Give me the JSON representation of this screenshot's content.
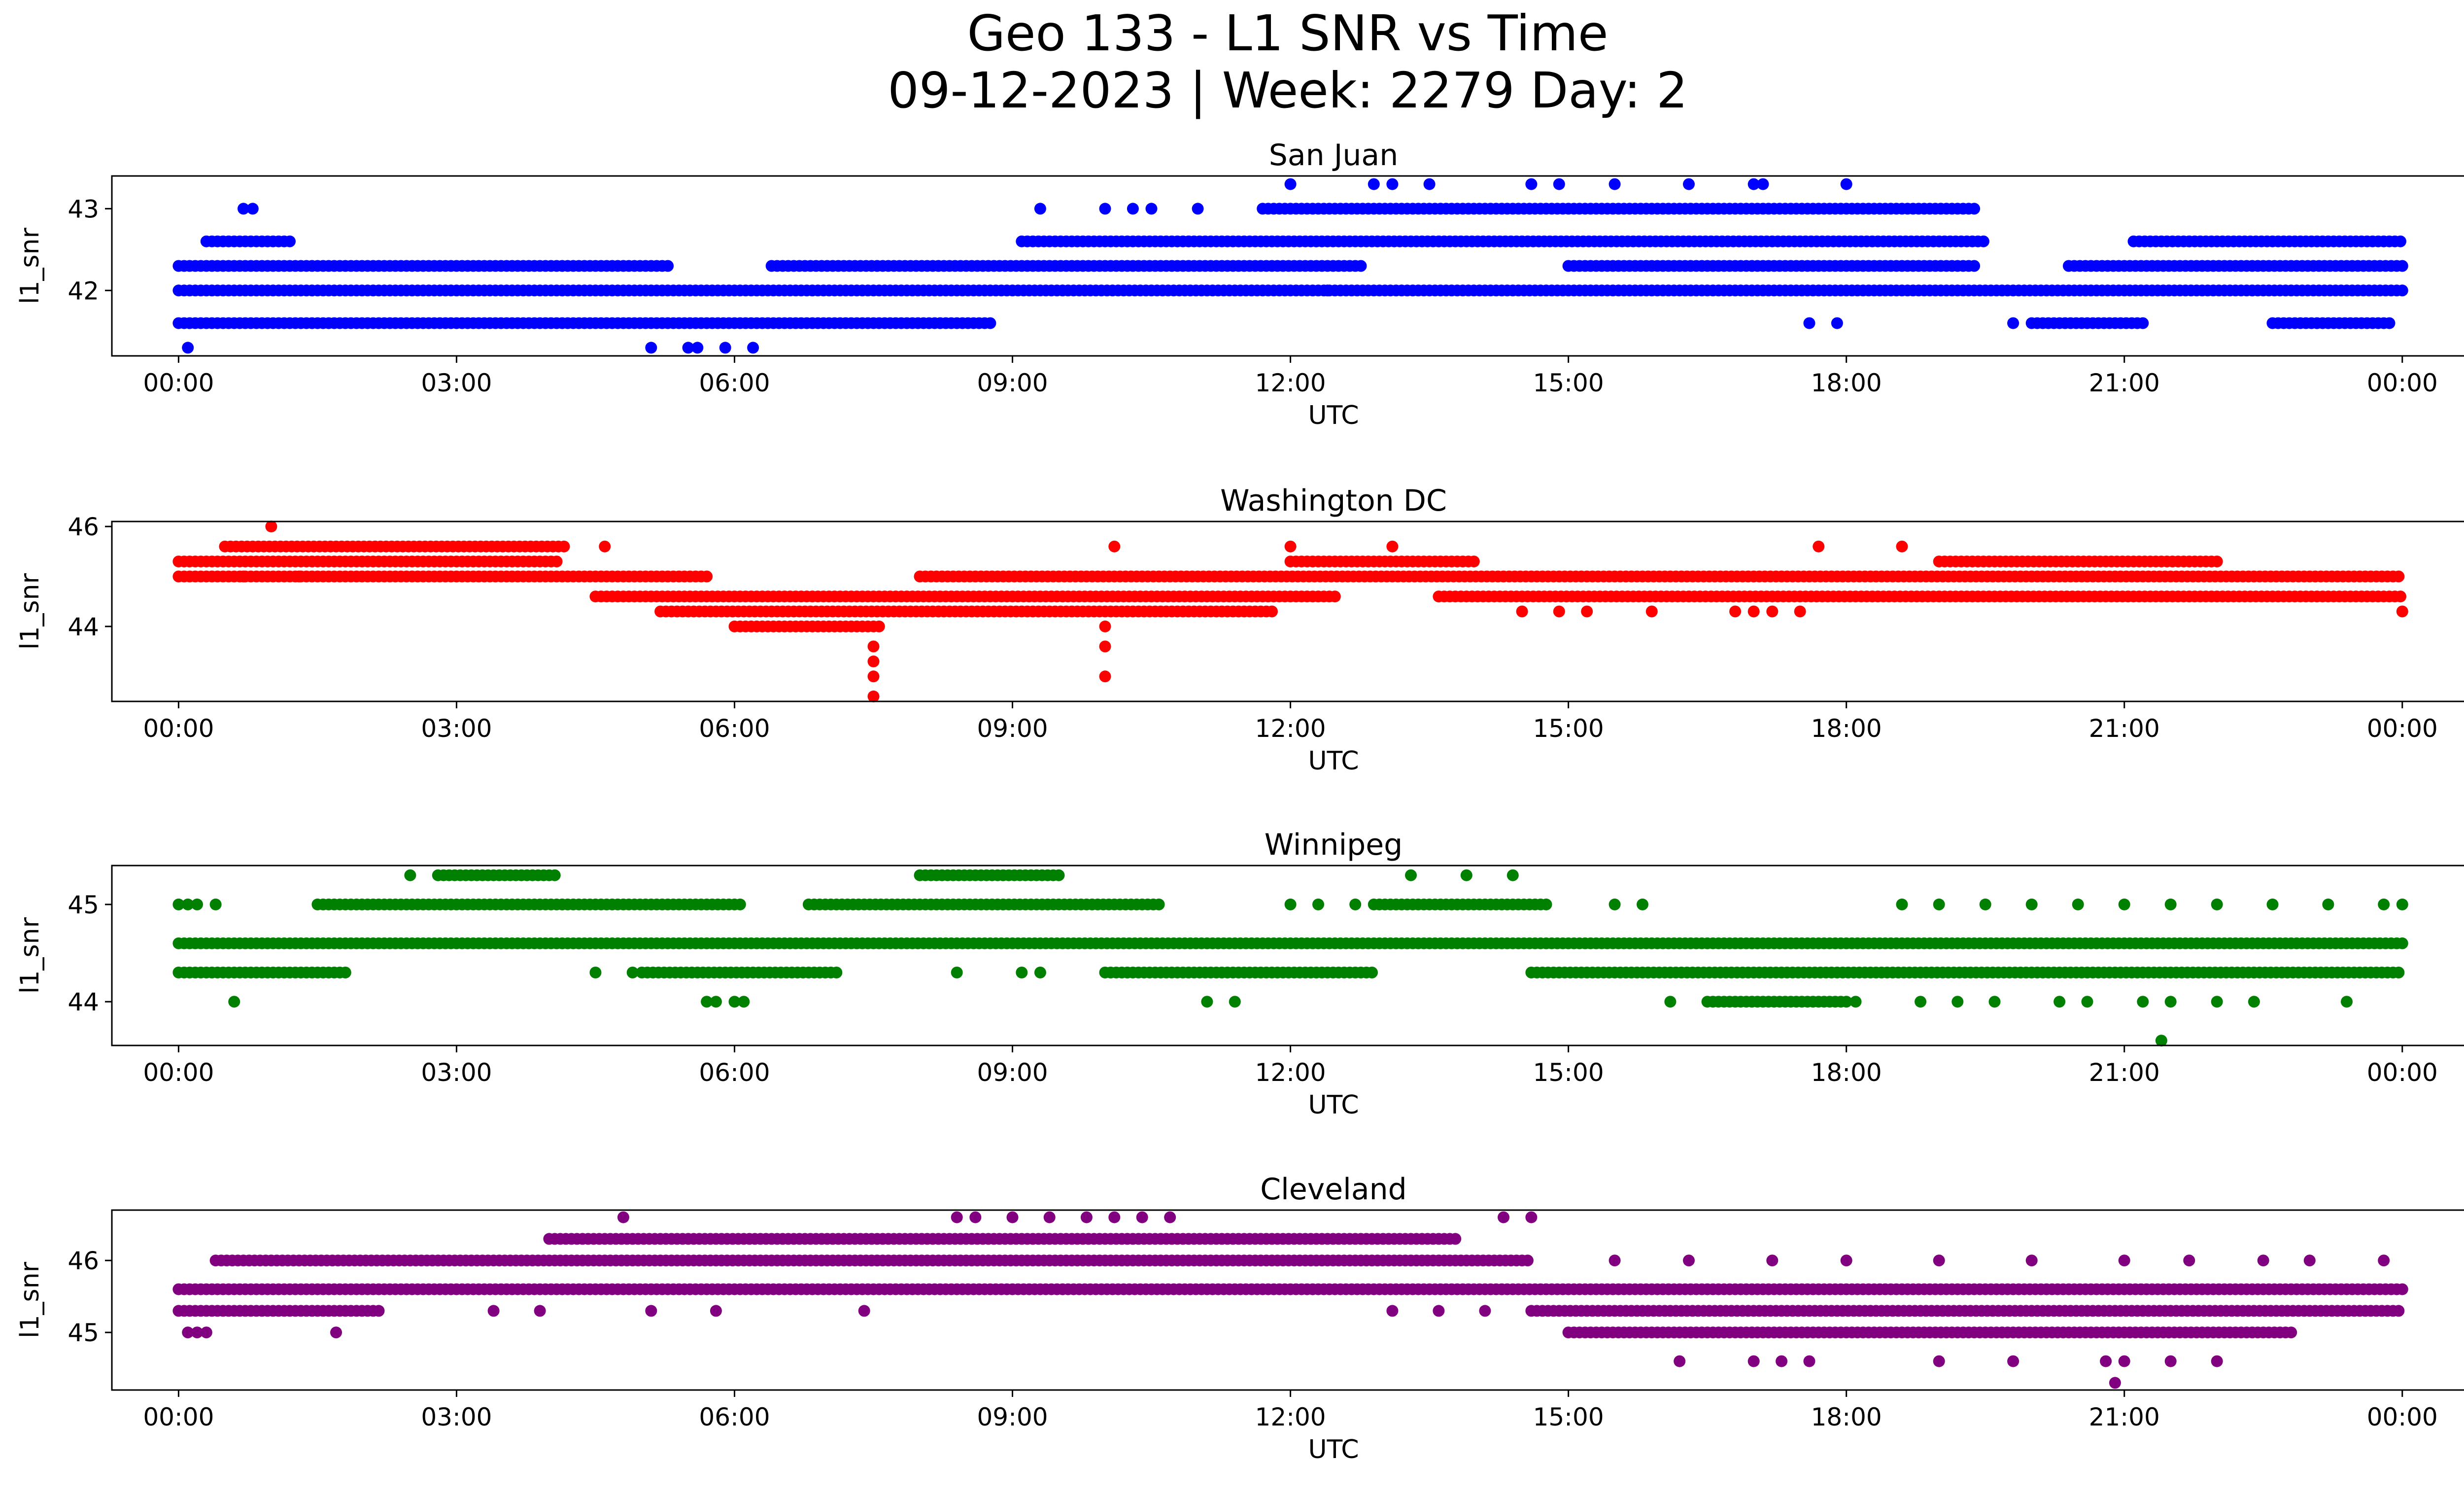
{
  "figure": {
    "title_line1": "Geo 133 - L1 SNR vs Time",
    "title_line2": "09-12-2023 | Week: 2279 Day: 2"
  },
  "chart_data": [
    {
      "type": "scatter",
      "title": "San Juan",
      "xlabel": "UTC",
      "ylabel": "l1_snr",
      "color": "#0000ff",
      "x_unit": "hours UTC",
      "x_range_hours": [
        -0.72,
        25.65
      ],
      "x_ticks": [
        "00:00",
        "03:00",
        "06:00",
        "09:00",
        "12:00",
        "15:00",
        "18:00",
        "21:00",
        "00:00"
      ],
      "ylim": [
        41.2,
        43.4
      ],
      "y_ticks": [
        42,
        43
      ],
      "snr_levels": [
        41.3,
        41.6,
        42.0,
        42.3,
        42.6,
        43.0,
        43.3
      ],
      "bands": [
        {
          "y": 42.0,
          "x": [
            [
              0.0,
              24.0
            ]
          ]
        },
        {
          "y": 42.3,
          "x": [
            [
              0.0,
              5.3
            ],
            [
              6.4,
              12.8
            ],
            [
              15.0,
              19.4
            ],
            [
              20.4,
              24.0
            ]
          ]
        },
        {
          "y": 41.6,
          "x": [
            [
              0.0,
              8.8
            ],
            [
              20.0,
              21.2
            ],
            [
              22.6,
              23.9
            ]
          ]
        },
        {
          "y": 42.6,
          "x": [
            [
              0.3,
              1.2
            ],
            [
              9.1,
              19.5
            ],
            [
              21.1,
              24.0
            ]
          ]
        },
        {
          "y": 43.0,
          "x": [
            [
              11.7,
              19.4
            ]
          ]
        }
      ],
      "points": [
        {
          "x": 0.7,
          "y": 43.0
        },
        {
          "x": 0.8,
          "y": 43.0
        },
        {
          "x": 0.1,
          "y": 41.3
        },
        {
          "x": 5.1,
          "y": 41.3
        },
        {
          "x": 5.5,
          "y": 41.3
        },
        {
          "x": 5.6,
          "y": 41.3
        },
        {
          "x": 5.9,
          "y": 41.3
        },
        {
          "x": 6.2,
          "y": 41.3
        },
        {
          "x": 9.3,
          "y": 43.0
        },
        {
          "x": 10.0,
          "y": 43.0
        },
        {
          "x": 10.3,
          "y": 43.0
        },
        {
          "x": 10.5,
          "y": 43.0
        },
        {
          "x": 11.0,
          "y": 43.0
        },
        {
          "x": 12.0,
          "y": 43.3
        },
        {
          "x": 12.9,
          "y": 43.3
        },
        {
          "x": 13.1,
          "y": 43.3
        },
        {
          "x": 13.5,
          "y": 43.3
        },
        {
          "x": 14.6,
          "y": 43.3
        },
        {
          "x": 14.9,
          "y": 43.3
        },
        {
          "x": 15.5,
          "y": 43.3
        },
        {
          "x": 16.3,
          "y": 43.3
        },
        {
          "x": 17.0,
          "y": 43.3
        },
        {
          "x": 17.1,
          "y": 43.3
        },
        {
          "x": 18.0,
          "y": 43.3
        },
        {
          "x": 12.4,
          "y": 42.0
        },
        {
          "x": 17.6,
          "y": 41.6
        },
        {
          "x": 17.9,
          "y": 41.6
        },
        {
          "x": 19.8,
          "y": 41.6
        }
      ]
    },
    {
      "type": "scatter",
      "title": "Washington DC",
      "xlabel": "UTC",
      "ylabel": "l1_snr",
      "color": "#ff0000",
      "x_unit": "hours UTC",
      "x_range_hours": [
        -0.72,
        25.65
      ],
      "x_ticks": [
        "00:00",
        "03:00",
        "06:00",
        "09:00",
        "12:00",
        "15:00",
        "18:00",
        "21:00",
        "00:00"
      ],
      "ylim": [
        42.5,
        46.1
      ],
      "y_ticks": [
        44,
        46
      ],
      "snr_levels": [
        42.6,
        43.0,
        43.3,
        43.6,
        44.0,
        44.3,
        44.6,
        45.0,
        45.3,
        45.6,
        46.0
      ],
      "bands": [
        {
          "y": 45.0,
          "x": [
            [
              0.0,
              5.7
            ],
            [
              8.0,
              24.0
            ]
          ]
        },
        {
          "y": 45.3,
          "x": [
            [
              0.0,
              4.1
            ],
            [
              12.0,
              14.0
            ],
            [
              19.0,
              22.0
            ]
          ]
        },
        {
          "y": 45.6,
          "x": [
            [
              0.5,
              4.2
            ]
          ]
        },
        {
          "y": 44.6,
          "x": [
            [
              4.5,
              12.5
            ],
            [
              13.6,
              24.0
            ]
          ]
        },
        {
          "y": 44.3,
          "x": [
            [
              5.2,
              11.8
            ]
          ]
        },
        {
          "y": 44.0,
          "x": [
            [
              6.0,
              7.6
            ]
          ]
        }
      ],
      "points": [
        {
          "x": 1.0,
          "y": 46.0
        },
        {
          "x": 7.5,
          "y": 43.6
        },
        {
          "x": 7.5,
          "y": 43.3
        },
        {
          "x": 7.5,
          "y": 43.0
        },
        {
          "x": 7.5,
          "y": 42.6
        },
        {
          "x": 10.0,
          "y": 44.0
        },
        {
          "x": 10.0,
          "y": 43.6
        },
        {
          "x": 10.0,
          "y": 43.0
        },
        {
          "x": 10.1,
          "y": 45.6
        },
        {
          "x": 12.0,
          "y": 45.6
        },
        {
          "x": 13.1,
          "y": 45.6
        },
        {
          "x": 17.7,
          "y": 45.6
        },
        {
          "x": 18.6,
          "y": 45.6
        },
        {
          "x": 14.5,
          "y": 44.3
        },
        {
          "x": 14.9,
          "y": 44.3
        },
        {
          "x": 15.2,
          "y": 44.3
        },
        {
          "x": 15.9,
          "y": 44.3
        },
        {
          "x": 16.8,
          "y": 44.3
        },
        {
          "x": 17.0,
          "y": 44.3
        },
        {
          "x": 17.2,
          "y": 44.3
        },
        {
          "x": 17.5,
          "y": 44.3
        },
        {
          "x": 24.0,
          "y": 44.3
        },
        {
          "x": 0.7,
          "y": 45.0
        },
        {
          "x": 1.3,
          "y": 45.0
        },
        {
          "x": 4.6,
          "y": 45.6
        }
      ]
    },
    {
      "type": "scatter",
      "title": "Winnipeg",
      "xlabel": "UTC",
      "ylabel": "l1_snr",
      "color": "#008000",
      "x_unit": "hours UTC",
      "x_range_hours": [
        -0.72,
        25.65
      ],
      "x_ticks": [
        "00:00",
        "03:00",
        "06:00",
        "09:00",
        "12:00",
        "15:00",
        "18:00",
        "21:00",
        "00:00"
      ],
      "ylim": [
        43.55,
        45.4
      ],
      "y_ticks": [
        44,
        45
      ],
      "snr_levels": [
        43.6,
        44.0,
        44.3,
        44.6,
        45.0,
        45.3
      ],
      "bands": [
        {
          "y": 44.6,
          "x": [
            [
              0.0,
              24.0
            ]
          ]
        },
        {
          "y": 44.3,
          "x": [
            [
              0.0,
              1.8
            ],
            [
              5.0,
              7.1
            ],
            [
              10.0,
              12.9
            ],
            [
              14.6,
              24.0
            ]
          ]
        },
        {
          "y": 45.0,
          "x": [
            [
              1.5,
              6.1
            ],
            [
              6.8,
              10.6
            ],
            [
              12.9,
              14.8
            ]
          ]
        },
        {
          "y": 45.3,
          "x": [
            [
              2.8,
              4.1
            ],
            [
              8.0,
              9.5
            ]
          ]
        },
        {
          "y": 44.0,
          "x": [
            [
              16.5,
              18.0
            ]
          ]
        }
      ],
      "points": [
        {
          "x": 0.0,
          "y": 45.0
        },
        {
          "x": 0.1,
          "y": 45.0
        },
        {
          "x": 0.2,
          "y": 45.0
        },
        {
          "x": 0.4,
          "y": 45.0
        },
        {
          "x": 0.6,
          "y": 44.0
        },
        {
          "x": 2.5,
          "y": 45.3
        },
        {
          "x": 4.5,
          "y": 44.3
        },
        {
          "x": 4.9,
          "y": 44.3
        },
        {
          "x": 5.7,
          "y": 44.0
        },
        {
          "x": 5.8,
          "y": 44.0
        },
        {
          "x": 6.0,
          "y": 44.0
        },
        {
          "x": 6.1,
          "y": 44.0
        },
        {
          "x": 8.4,
          "y": 44.3
        },
        {
          "x": 9.1,
          "y": 44.3
        },
        {
          "x": 9.3,
          "y": 44.3
        },
        {
          "x": 11.1,
          "y": 44.0
        },
        {
          "x": 11.4,
          "y": 44.0
        },
        {
          "x": 12.0,
          "y": 45.0
        },
        {
          "x": 12.3,
          "y": 45.0
        },
        {
          "x": 12.7,
          "y": 45.0
        },
        {
          "x": 13.3,
          "y": 45.3
        },
        {
          "x": 13.9,
          "y": 45.3
        },
        {
          "x": 14.4,
          "y": 45.3
        },
        {
          "x": 15.5,
          "y": 45.0
        },
        {
          "x": 15.8,
          "y": 45.0
        },
        {
          "x": 16.1,
          "y": 44.0
        },
        {
          "x": 18.1,
          "y": 44.0
        },
        {
          "x": 18.8,
          "y": 44.0
        },
        {
          "x": 19.2,
          "y": 44.0
        },
        {
          "x": 19.6,
          "y": 44.0
        },
        {
          "x": 20.3,
          "y": 44.0
        },
        {
          "x": 20.6,
          "y": 44.0
        },
        {
          "x": 21.2,
          "y": 44.0
        },
        {
          "x": 21.5,
          "y": 44.0
        },
        {
          "x": 22.0,
          "y": 44.0
        },
        {
          "x": 22.4,
          "y": 44.0
        },
        {
          "x": 23.4,
          "y": 44.0
        },
        {
          "x": 21.4,
          "y": 43.6
        },
        {
          "x": 18.6,
          "y": 45.0
        },
        {
          "x": 19.0,
          "y": 45.0
        },
        {
          "x": 19.5,
          "y": 45.0
        },
        {
          "x": 20.0,
          "y": 45.0
        },
        {
          "x": 20.5,
          "y": 45.0
        },
        {
          "x": 21.0,
          "y": 45.0
        },
        {
          "x": 21.5,
          "y": 45.0
        },
        {
          "x": 22.0,
          "y": 45.0
        },
        {
          "x": 22.6,
          "y": 45.0
        },
        {
          "x": 23.2,
          "y": 45.0
        },
        {
          "x": 23.8,
          "y": 45.0
        },
        {
          "x": 24.0,
          "y": 45.0
        }
      ]
    },
    {
      "type": "scatter",
      "title": "Cleveland",
      "xlabel": "UTC",
      "ylabel": "l1_snr",
      "color": "#800080",
      "x_unit": "hours UTC",
      "x_range_hours": [
        -0.72,
        25.65
      ],
      "x_ticks": [
        "00:00",
        "03:00",
        "06:00",
        "09:00",
        "12:00",
        "15:00",
        "18:00",
        "21:00",
        "00:00"
      ],
      "ylim": [
        44.2,
        46.7
      ],
      "y_ticks": [
        45,
        46
      ],
      "snr_levels": [
        44.3,
        44.6,
        45.0,
        45.3,
        45.6,
        46.0,
        46.3,
        46.6
      ],
      "bands": [
        {
          "y": 45.6,
          "x": [
            [
              0.0,
              24.0
            ]
          ]
        },
        {
          "y": 45.3,
          "x": [
            [
              0.0,
              2.2
            ],
            [
              14.6,
              24.0
            ]
          ]
        },
        {
          "y": 46.0,
          "x": [
            [
              0.4,
              14.6
            ]
          ]
        },
        {
          "y": 46.3,
          "x": [
            [
              4.0,
              13.8
            ]
          ]
        },
        {
          "y": 45.0,
          "x": [
            [
              15.0,
              22.8
            ]
          ]
        }
      ],
      "points": [
        {
          "x": 0.1,
          "y": 45.0
        },
        {
          "x": 0.2,
          "y": 45.0
        },
        {
          "x": 0.3,
          "y": 45.0
        },
        {
          "x": 1.7,
          "y": 45.0
        },
        {
          "x": 4.8,
          "y": 46.6
        },
        {
          "x": 8.4,
          "y": 46.6
        },
        {
          "x": 8.6,
          "y": 46.6
        },
        {
          "x": 9.0,
          "y": 46.6
        },
        {
          "x": 9.4,
          "y": 46.6
        },
        {
          "x": 9.8,
          "y": 46.6
        },
        {
          "x": 10.1,
          "y": 46.6
        },
        {
          "x": 10.4,
          "y": 46.6
        },
        {
          "x": 10.7,
          "y": 46.6
        },
        {
          "x": 14.3,
          "y": 46.6
        },
        {
          "x": 14.6,
          "y": 46.6
        },
        {
          "x": 3.4,
          "y": 45.3
        },
        {
          "x": 3.9,
          "y": 45.3
        },
        {
          "x": 5.1,
          "y": 45.3
        },
        {
          "x": 5.8,
          "y": 45.3
        },
        {
          "x": 7.4,
          "y": 45.3
        },
        {
          "x": 13.1,
          "y": 45.3
        },
        {
          "x": 13.6,
          "y": 45.3
        },
        {
          "x": 14.1,
          "y": 45.3
        },
        {
          "x": 16.2,
          "y": 44.6
        },
        {
          "x": 17.0,
          "y": 44.6
        },
        {
          "x": 17.3,
          "y": 44.6
        },
        {
          "x": 17.6,
          "y": 44.6
        },
        {
          "x": 19.0,
          "y": 44.6
        },
        {
          "x": 19.8,
          "y": 44.6
        },
        {
          "x": 20.8,
          "y": 44.6
        },
        {
          "x": 21.0,
          "y": 44.6
        },
        {
          "x": 21.5,
          "y": 44.6
        },
        {
          "x": 22.0,
          "y": 44.6
        },
        {
          "x": 20.9,
          "y": 44.3
        },
        {
          "x": 15.5,
          "y": 46.0
        },
        {
          "x": 16.3,
          "y": 46.0
        },
        {
          "x": 17.2,
          "y": 46.0
        },
        {
          "x": 18.0,
          "y": 46.0
        },
        {
          "x": 19.0,
          "y": 46.0
        },
        {
          "x": 20.0,
          "y": 46.0
        },
        {
          "x": 21.0,
          "y": 46.0
        },
        {
          "x": 21.7,
          "y": 46.0
        },
        {
          "x": 22.5,
          "y": 46.0
        },
        {
          "x": 23.0,
          "y": 46.0
        },
        {
          "x": 23.8,
          "y": 46.0
        }
      ]
    }
  ]
}
